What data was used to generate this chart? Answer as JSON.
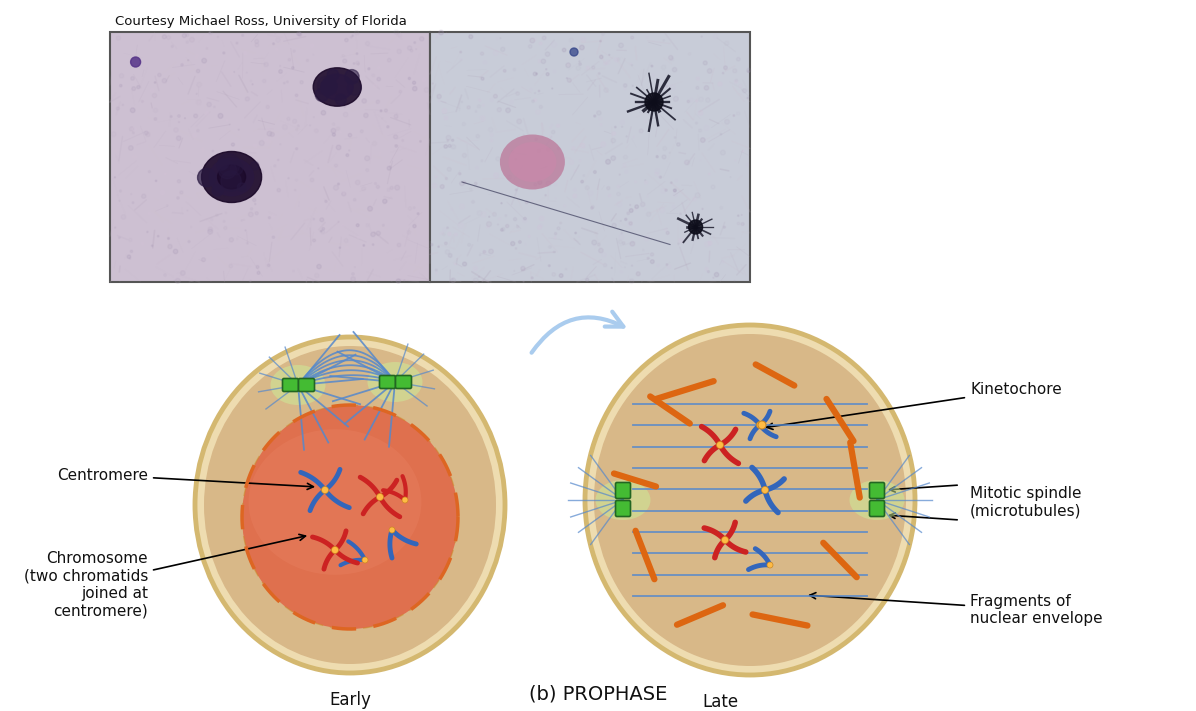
{
  "title": "(b) PROPHASE",
  "courtesy_text": "Courtesy Michael Ross, University of Florida",
  "bg_color": "#ffffff",
  "cell_outer_fill": "#e8d0a8",
  "cell_outer_edge": "#d4b87a",
  "cell_inner_fill": "#d4a878",
  "nucleus_fill": "#e07055",
  "nuclear_env_color": "#cc6622",
  "chr_red": "#cc2222",
  "chr_blue": "#3366bb",
  "centrosome_fill": "#44bb33",
  "centrosome_edge": "#226622",
  "spindle_color": "#5588cc",
  "glow_color": "#ccee99",
  "frag_color": "#dd6611",
  "label_fs": 11,
  "title_fs": 14,
  "early_label": "Early",
  "late_label": "Late"
}
